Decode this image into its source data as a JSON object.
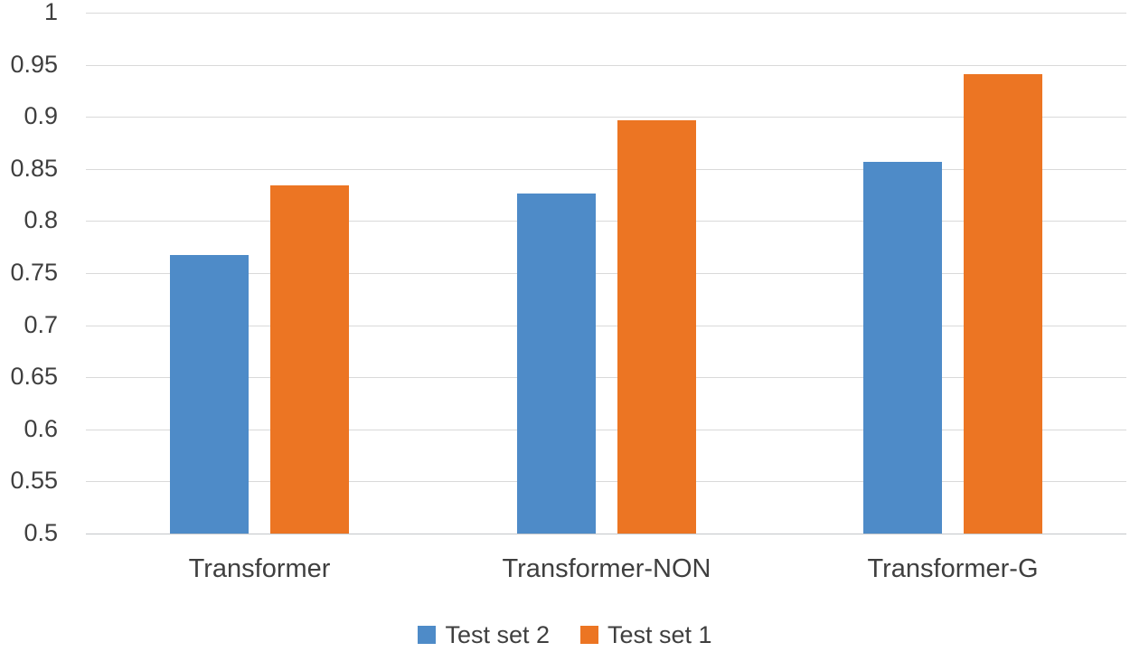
{
  "chart_data": {
    "type": "bar",
    "title": "",
    "xlabel": "",
    "ylabel": "",
    "categories": [
      "Transformer",
      "Transformer-NON",
      "Transformer-G"
    ],
    "series": [
      {
        "name": "Test set 2",
        "color": "#4E8BC8",
        "values": [
          0.767,
          0.826,
          0.857
        ]
      },
      {
        "name": "Test set 1",
        "color": "#EC7523",
        "values": [
          0.834,
          0.897,
          0.941
        ]
      }
    ],
    "ylim": [
      0.5,
      1.0
    ],
    "ytick_step": 0.05,
    "ytick_labels": [
      "0.5",
      "0.55",
      "0.6",
      "0.65",
      "0.7",
      "0.75",
      "0.8",
      "0.85",
      "0.9",
      "0.95",
      "1"
    ],
    "grid": true,
    "legend_position": "bottom"
  },
  "colors": {
    "background": "#ffffff",
    "gridline": "#d9d9d9",
    "axis_line": "#c3c6c9",
    "text": "#3f3f3f",
    "series_blue": "#4E8BC8",
    "series_orange": "#EC7523"
  }
}
